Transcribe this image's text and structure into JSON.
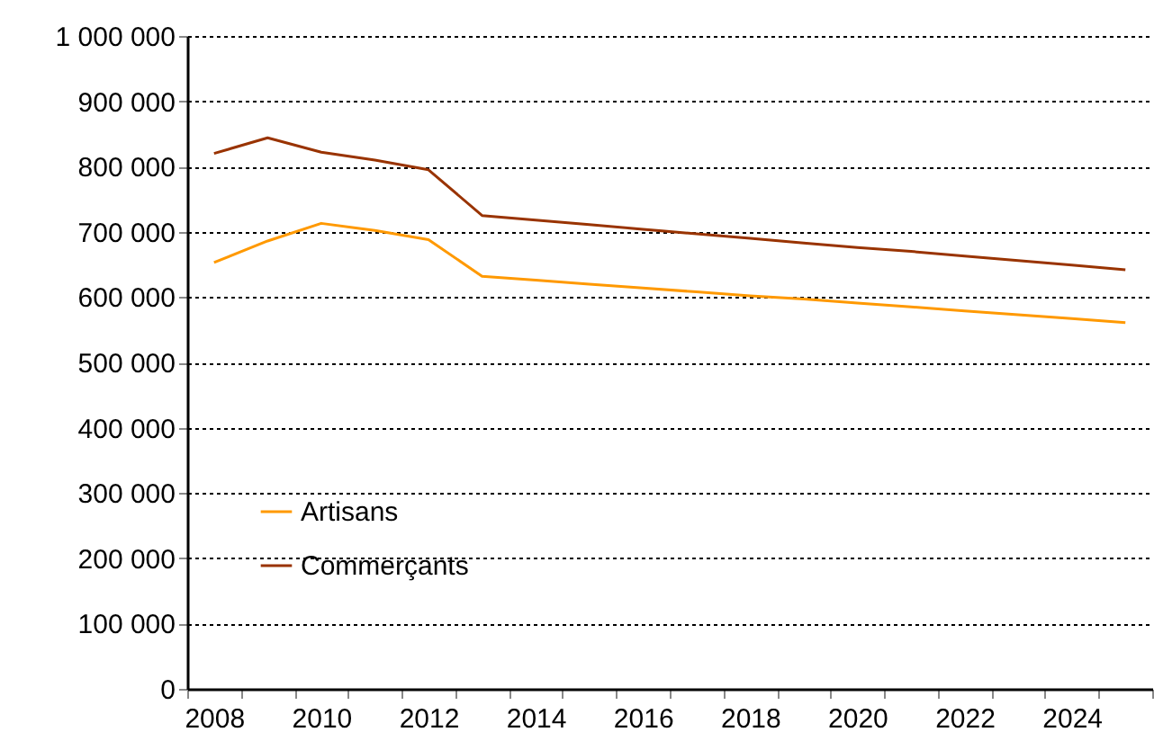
{
  "chart_data": {
    "type": "line",
    "categories": [
      "2008",
      null,
      "2010",
      null,
      "2012",
      null,
      "2014",
      null,
      "2016",
      null,
      "2018",
      null,
      "2020",
      null,
      "2022",
      null,
      "2024",
      null
    ],
    "series": [
      {
        "name": "Artisans",
        "color": "#ff9900",
        "values": [
          653000,
          686000,
          713000,
          702000,
          688000,
          632000,
          626000,
          620000,
          614000,
          608000,
          602000,
          597000,
          591000,
          585000,
          579000,
          573000,
          567000,
          561000
        ]
      },
      {
        "name": "Commerçants",
        "color": "#993300",
        "values": [
          820000,
          844000,
          822000,
          810000,
          795000,
          725000,
          718000,
          711000,
          704000,
          697000,
          690000,
          683000,
          676000,
          670000,
          663000,
          656000,
          649000,
          642000
        ]
      }
    ],
    "ylim": [
      0,
      1000000
    ],
    "yticks": [
      {
        "value": 0,
        "label": "0"
      },
      {
        "value": 100000,
        "label": "100 000"
      },
      {
        "value": 200000,
        "label": "200 000"
      },
      {
        "value": 300000,
        "label": "300 000"
      },
      {
        "value": 400000,
        "label": "400 000"
      },
      {
        "value": 500000,
        "label": "500 000"
      },
      {
        "value": 600000,
        "label": "600 000"
      },
      {
        "value": 700000,
        "label": "700 000"
      },
      {
        "value": 800000,
        "label": "800 000"
      },
      {
        "value": 900000,
        "label": "900 000"
      },
      {
        "value": 1000000,
        "label": "1 000 000"
      }
    ],
    "grid": "y",
    "legend": "bottom left"
  }
}
